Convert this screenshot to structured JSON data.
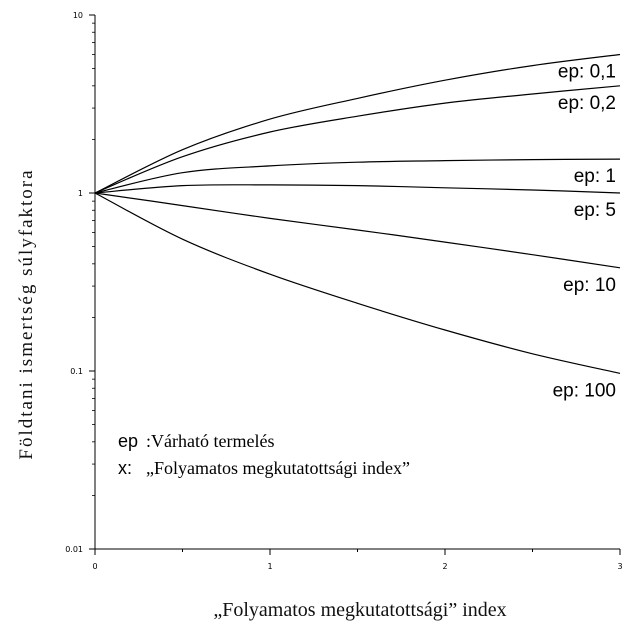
{
  "chart_data": {
    "type": "line",
    "y_scale": "log",
    "xlim": [
      0,
      3
    ],
    "ylim": [
      0.01,
      10
    ],
    "x_ticks": [
      "0",
      "1",
      "2",
      "3"
    ],
    "y_ticks": [
      "10",
      "1",
      "0.1",
      "0.01"
    ],
    "y_tick_values": [
      10,
      1,
      0.1,
      0.01
    ],
    "x_tick_values": [
      0,
      1,
      2,
      3
    ],
    "ylabel": "Földtani ismertség súlyfaktora",
    "xlabel": "„Folyamatos megkutatottsági” index",
    "x": [
      0,
      0.5,
      1,
      1.5,
      2,
      2.5,
      3
    ],
    "series": [
      {
        "name": "ep: 0,1",
        "values": [
          1,
          1.75,
          2.6,
          3.4,
          4.3,
          5.2,
          6.0
        ]
      },
      {
        "name": "ep: 0,2",
        "values": [
          1,
          1.6,
          2.2,
          2.7,
          3.2,
          3.6,
          4.0
        ]
      },
      {
        "name": "ep: 1",
        "values": [
          1,
          1.3,
          1.42,
          1.49,
          1.52,
          1.54,
          1.55
        ]
      },
      {
        "name": "ep: 5",
        "values": [
          1,
          1.1,
          1.11,
          1.1,
          1.07,
          1.04,
          1.0
        ]
      },
      {
        "name": "ep: 10",
        "values": [
          1,
          0.85,
          0.72,
          0.62,
          0.53,
          0.45,
          0.38
        ]
      },
      {
        "name": "ep: 100",
        "values": [
          1,
          0.55,
          0.35,
          0.24,
          0.17,
          0.125,
          0.097
        ]
      }
    ],
    "grid": false,
    "legend_note": {
      "key_ep": "ep",
      "desc_ep": ":Várható termelés",
      "key_x": "x:",
      "desc_x": "„Folyamatos megkutatottsági index”"
    },
    "line_color": "#000000"
  }
}
